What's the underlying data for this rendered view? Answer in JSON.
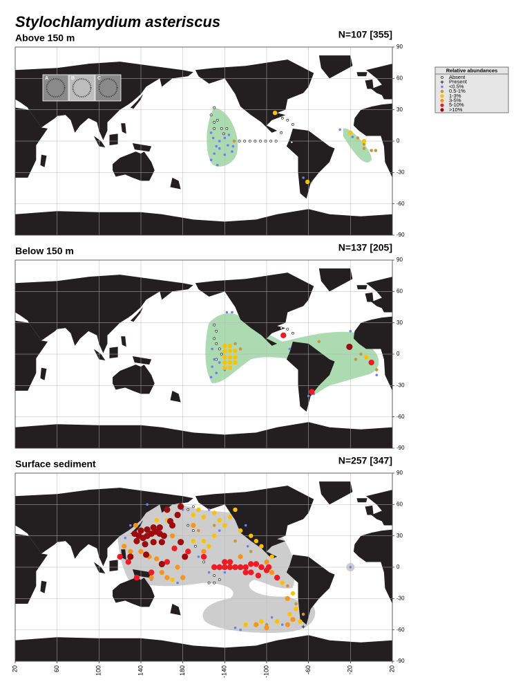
{
  "title": "Stylochlamydium asteriscus",
  "legend": {
    "title": "Relative abundances",
    "items": [
      {
        "label": "Absent",
        "color": "#000000"
      },
      {
        "label": "Present",
        "color": "#000000"
      },
      {
        "label": "<0.5%",
        "color": "#6f7fe8"
      },
      {
        "label": "0.5-1%",
        "color": "#c8963c"
      },
      {
        "label": "1-3%",
        "color": "#ffc000"
      },
      {
        "label": "3-5%",
        "color": "#f7941d"
      },
      {
        "label": "5-10%",
        "color": "#ed1c24"
      },
      {
        "label": ">10%",
        "color": "#9e0b0f"
      }
    ]
  },
  "lat_ticks": [
    90,
    60,
    30,
    0,
    -30,
    -60,
    -90
  ],
  "lon_ticks": [
    20,
    60,
    100,
    140,
    180,
    -140,
    -100,
    -60,
    -20,
    20
  ],
  "inset_labels": [
    "A",
    "B",
    "C"
  ],
  "panels": [
    {
      "title": "Above 150 m",
      "n_label": "N=107 [355]",
      "points": [
        [
          [
            -150,
            32
          ],
          [
            -153,
            25
          ],
          [
            -147,
            20
          ],
          [
            -150,
            12
          ],
          [
            -143,
            12
          ],
          [
            -138,
            12
          ],
          [
            -141,
            7
          ],
          [
            -126,
            0
          ],
          [
            -121,
            0
          ],
          [
            -116,
            0
          ],
          [
            -111,
            0
          ],
          [
            -106,
            0
          ],
          [
            -101,
            0
          ],
          [
            -96,
            0
          ],
          [
            -91,
            0
          ],
          [
            -150,
            18
          ],
          [
            -85,
            22
          ],
          [
            -80,
            20
          ],
          [
            -75,
            16
          ],
          [
            -86,
            8
          ],
          [
            -76,
            -1
          ]
        ],
        [],
        [
          [
            -153,
            8
          ],
          [
            -151,
            3
          ],
          [
            -145,
            0
          ],
          [
            -140,
            3
          ],
          [
            -137,
            -4
          ],
          [
            -145,
            -7
          ],
          [
            -150,
            -12
          ],
          [
            -153,
            -18
          ],
          [
            -147,
            -23
          ],
          [
            -140,
            -13
          ],
          [
            -133,
            -10
          ],
          [
            -136,
            6
          ],
          [
            -132,
            -5
          ],
          [
            -148,
            -5
          ],
          [
            -30,
            11
          ],
          [
            -18,
            4
          ],
          [
            -65,
            -35
          ]
        ],
        [
          [
            -131,
            0
          ],
          [
            -13,
            3
          ],
          [
            -7,
            -7
          ],
          [
            0,
            -9
          ],
          [
            4,
            -9
          ],
          [
            -7,
            -3
          ]
        ],
        [
          [
            -92,
            27
          ],
          [
            -61,
            -39
          ],
          [
            -7,
            0
          ],
          [
            -20,
            8
          ]
        ],
        [],
        [],
        []
      ]
    },
    {
      "title": "Below 150 m",
      "n_label": "N=137 [205]",
      "points": [
        [
          [
            -150,
            28
          ],
          [
            -148,
            22
          ],
          [
            -150,
            15
          ],
          [
            -148,
            10
          ],
          [
            -145,
            5
          ],
          [
            -143,
            0
          ],
          [
            -148,
            -5
          ],
          [
            -86,
            25
          ],
          [
            -80,
            24
          ],
          [
            -75,
            20
          ]
        ],
        [],
        [
          [
            -152,
            5
          ],
          [
            -150,
            -5
          ],
          [
            -152,
            -12
          ],
          [
            -148,
            -18
          ],
          [
            -153,
            -22
          ],
          [
            -145,
            -8
          ],
          [
            -140,
            -15
          ],
          [
            -138,
            40
          ],
          [
            -133,
            40
          ],
          [
            -20,
            22
          ],
          [
            -60,
            -40
          ],
          [
            -55,
            -38
          ],
          [
            5,
            -20
          ],
          [
            -78,
            5
          ]
        ],
        [
          [
            -130,
            10
          ],
          [
            -125,
            5
          ],
          [
            -50,
            12
          ],
          [
            -10,
            0
          ],
          [
            5,
            -15
          ],
          [
            -15,
            -5
          ]
        ],
        [
          [
            -140,
            8
          ],
          [
            -135,
            8
          ],
          [
            -140,
            3
          ],
          [
            -135,
            3
          ],
          [
            -130,
            3
          ],
          [
            -140,
            -3
          ],
          [
            -135,
            -3
          ],
          [
            -130,
            -3
          ],
          [
            -140,
            -8
          ],
          [
            -135,
            -8
          ],
          [
            -130,
            -8
          ],
          [
            -140,
            -13
          ],
          [
            -135,
            -13
          ],
          [
            -5,
            -3
          ]
        ],
        [],
        [
          [
            -84,
            18
          ],
          [
            0,
            -8
          ],
          [
            -57,
            -36
          ]
        ],
        [
          [
            -21,
            7
          ]
        ]
      ]
    },
    {
      "title": "Surface sediment",
      "n_label": "N=257 [347]",
      "points": [
        [
          [
            -175,
            40
          ],
          [
            -170,
            35
          ],
          [
            -168,
            20
          ],
          [
            -160,
            5
          ],
          [
            -150,
            -8
          ],
          [
            -155,
            -15
          ],
          [
            -150,
            -15
          ],
          [
            -145,
            -12
          ],
          [
            -175,
            55
          ],
          [
            -170,
            58
          ]
        ],
        [
          [
            -65,
            -57
          ]
        ],
        [
          [
            146,
            60
          ],
          [
            180,
            55
          ],
          [
            -155,
            55
          ],
          [
            -145,
            35
          ],
          [
            -120,
            40
          ],
          [
            -118,
            20
          ],
          [
            -125,
            -60
          ],
          [
            -130,
            -58
          ],
          [
            -95,
            -48
          ],
          [
            -85,
            -55
          ],
          [
            -20,
            0
          ],
          [
            130,
            40
          ],
          [
            125,
            28
          ],
          [
            150,
            -12
          ],
          [
            175,
            -15
          ],
          [
            -165,
            10
          ],
          [
            -140,
            -5
          ],
          [
            -155,
            -5
          ]
        ],
        [
          [
            -165,
            35
          ],
          [
            -150,
            40
          ],
          [
            -130,
            25
          ],
          [
            -115,
            15
          ],
          [
            -80,
            -18
          ],
          [
            -72,
            -35
          ],
          [
            -100,
            -55
          ],
          [
            -65,
            -45
          ]
        ],
        [
          [
            -170,
            50
          ],
          [
            -165,
            55
          ],
          [
            -160,
            48
          ],
          [
            -150,
            52
          ],
          [
            -145,
            45
          ],
          [
            -140,
            40
          ],
          [
            -135,
            48
          ],
          [
            -130,
            55
          ],
          [
            -125,
            35
          ],
          [
            -115,
            30
          ],
          [
            -110,
            25
          ],
          [
            -105,
            20
          ],
          [
            -95,
            10
          ],
          [
            -170,
            25
          ],
          [
            -160,
            25
          ],
          [
            -155,
            20
          ],
          [
            165,
            45
          ],
          [
            170,
            -12
          ],
          [
            -85,
            -15
          ],
          [
            -75,
            -25
          ],
          [
            -72,
            -40
          ],
          [
            -120,
            -55
          ],
          [
            -105,
            -52
          ],
          [
            -90,
            -52
          ],
          [
            -78,
            -45
          ],
          [
            -68,
            -52
          ],
          [
            -150,
            30
          ],
          [
            155,
            45
          ]
        ],
        [
          [
            124,
            20
          ],
          [
            130,
            15
          ],
          [
            140,
            15
          ],
          [
            148,
            10
          ],
          [
            155,
            8
          ],
          [
            160,
            -5
          ],
          [
            165,
            -10
          ],
          [
            170,
            30
          ],
          [
            175,
            0
          ],
          [
            180,
            -10
          ],
          [
            -125,
            10
          ],
          [
            -100,
            5
          ],
          [
            -95,
            -5
          ],
          [
            -80,
            -30
          ],
          [
            -110,
            -55
          ],
          [
            -100,
            -58
          ],
          [
            -80,
            -55
          ],
          [
            -75,
            -50
          ],
          [
            -170,
            40
          ],
          [
            -160,
            15
          ],
          [
            135,
            40
          ],
          [
            150,
            -10
          ]
        ],
        [
          [
            120,
            10
          ],
          [
            128,
            5
          ],
          [
            136,
            -10
          ],
          [
            150,
            -5
          ],
          [
            165,
            5
          ],
          [
            -150,
            0
          ],
          [
            -145,
            0
          ],
          [
            -140,
            0
          ],
          [
            -135,
            0
          ],
          [
            -130,
            0
          ],
          [
            -125,
            0
          ],
          [
            -120,
            0
          ],
          [
            -115,
            3
          ],
          [
            -110,
            3
          ],
          [
            -105,
            0
          ],
          [
            -100,
            -3
          ],
          [
            -98,
            0
          ],
          [
            -120,
            -5
          ],
          [
            -115,
            -5
          ],
          [
            -108,
            -8
          ],
          [
            -135,
            5
          ],
          [
            -140,
            5
          ],
          [
            -160,
            10
          ],
          [
            -90,
            -10
          ],
          [
            -175,
            15
          ],
          [
            172,
            18
          ]
        ],
        [
          [
            134,
            32
          ],
          [
            138,
            30
          ],
          [
            142,
            28
          ],
          [
            146,
            30
          ],
          [
            150,
            32
          ],
          [
            154,
            34
          ],
          [
            158,
            32
          ],
          [
            162,
            30
          ],
          [
            140,
            35
          ],
          [
            146,
            36
          ],
          [
            152,
            38
          ],
          [
            158,
            38
          ],
          [
            136,
            25
          ],
          [
            144,
            22
          ],
          [
            152,
            24
          ],
          [
            160,
            24
          ],
          [
            170,
            40
          ],
          [
            175,
            50
          ],
          [
            178,
            58
          ],
          [
            165,
            55
          ],
          [
            168,
            44
          ],
          [
            130,
            10
          ],
          [
            145,
            12
          ],
          [
            160,
            3
          ],
          [
            178,
            24
          ],
          [
            -178,
            10
          ]
        ]
      ]
    }
  ]
}
